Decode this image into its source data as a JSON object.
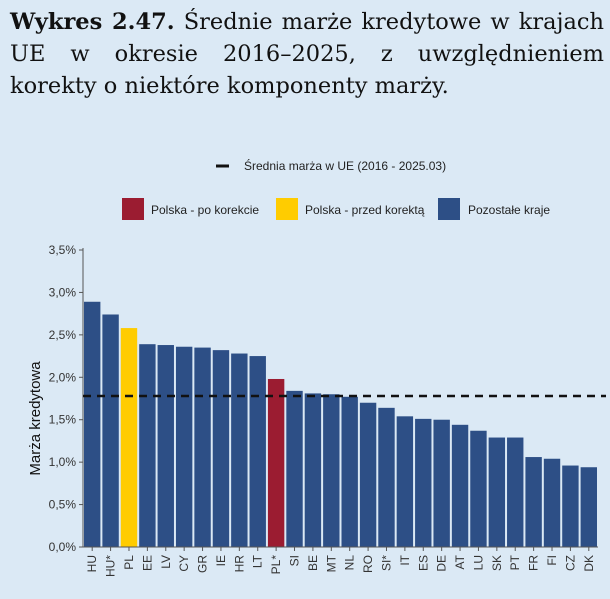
{
  "figure": {
    "label": "Wykres 2.47.",
    "caption": "Średnie marże kredytowe w krajach UE w okresie 2016–2025, z uwzględnieniem korekty o niektóre komponenty marży."
  },
  "chart_data": {
    "type": "bar",
    "title": "",
    "xlabel": "",
    "ylabel": "Marża kredytowa",
    "ylim": [
      0,
      3.5
    ],
    "yticks": [
      "0,0%",
      "0,5%",
      "1,0%",
      "1,5%",
      "2,0%",
      "2,5%",
      "3,0%",
      "3,5%"
    ],
    "grid": false,
    "legend_position": "top",
    "reference_line": {
      "label": "Średnia marża w UE (2016 - 2025.03)",
      "value": 1.78,
      "color": "#111111",
      "style": "dashed"
    },
    "legend": [
      {
        "key": "pl_after",
        "label": "Polska - po korekcie",
        "color": "#9b1c31"
      },
      {
        "key": "pl_before",
        "label": "Polska - przed korektą",
        "color": "#ffcc00"
      },
      {
        "key": "other",
        "label": "Pozostałe kraje",
        "color": "#2d4f86"
      }
    ],
    "categories": [
      "HU",
      "HU*",
      "PL",
      "EE",
      "LV",
      "CY",
      "GR",
      "IE",
      "HR",
      "LT",
      "PL*",
      "SI",
      "BE",
      "MT",
      "NL",
      "RO",
      "SI*",
      "IT",
      "ES",
      "DE",
      "AT",
      "LU",
      "SK",
      "PT",
      "FR",
      "FI",
      "CZ",
      "DK"
    ],
    "values": [
      2.89,
      2.74,
      2.58,
      2.39,
      2.38,
      2.36,
      2.35,
      2.32,
      2.28,
      2.25,
      1.98,
      1.84,
      1.81,
      1.8,
      1.77,
      1.7,
      1.64,
      1.54,
      1.51,
      1.5,
      1.44,
      1.37,
      1.29,
      1.29,
      1.06,
      1.04,
      0.96,
      0.94
    ],
    "bar_groups": [
      "other",
      "other",
      "pl_before",
      "other",
      "other",
      "other",
      "other",
      "other",
      "other",
      "other",
      "pl_after",
      "other",
      "other",
      "other",
      "other",
      "other",
      "other",
      "other",
      "other",
      "other",
      "other",
      "other",
      "other",
      "other",
      "other",
      "other",
      "other",
      "other"
    ]
  }
}
